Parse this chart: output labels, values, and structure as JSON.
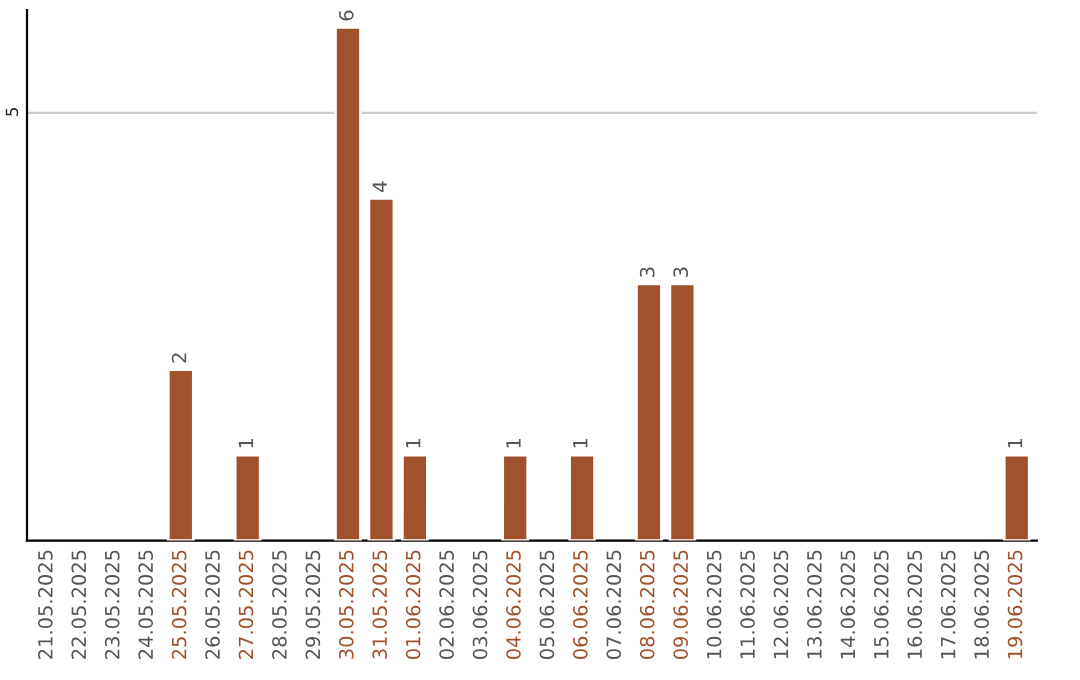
{
  "chart_data": {
    "type": "bar",
    "categories": [
      "21.05.2025",
      "22.05.2025",
      "23.05.2025",
      "24.05.2025",
      "25.05.2025",
      "26.05.2025",
      "27.05.2025",
      "28.05.2025",
      "29.05.2025",
      "30.05.2025",
      "31.05.2025",
      "01.06.2025",
      "02.06.2025",
      "03.06.2025",
      "04.06.2025",
      "05.06.2025",
      "06.06.2025",
      "07.06.2025",
      "08.06.2025",
      "09.06.2025",
      "10.06.2025",
      "11.06.2025",
      "12.06.2025",
      "13.06.2025",
      "14.06.2025",
      "15.06.2025",
      "16.06.2025",
      "17.06.2025",
      "18.06.2025",
      "19.06.2025"
    ],
    "values": [
      null,
      null,
      null,
      null,
      2,
      null,
      1,
      null,
      null,
      6,
      4,
      1,
      null,
      null,
      1,
      null,
      1,
      null,
      3,
      3,
      null,
      null,
      null,
      null,
      null,
      null,
      null,
      null,
      null,
      1
    ],
    "color": "#a0522d",
    "ylim": [
      0,
      6.2
    ],
    "yticks": [
      5
    ],
    "grid": "y",
    "data_labels": true
  }
}
